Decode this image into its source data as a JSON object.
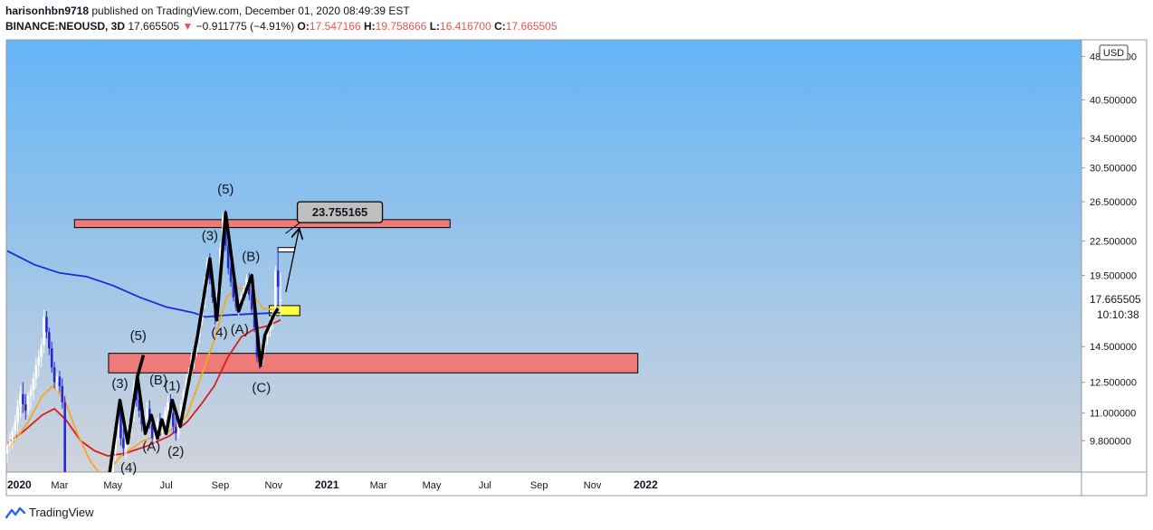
{
  "header": {
    "user": "harisonhbn9718",
    "published": "published on TradingView.com, December 01, 2020 08:49:39 EST",
    "symbol": "BINANCE:NEOUSD, 3D",
    "last": "17.665505",
    "change_arrow": "▼",
    "change": "−0.911775 (−4.91%)",
    "o_label": "O:",
    "o": "17.547166",
    "h_label": "H:",
    "h": "19.758666",
    "l_label": "L:",
    "l": "16.416700",
    "c_label": "C:",
    "c": "17.665505"
  },
  "price_axis": {
    "currency": "USD",
    "current_price": "17.665505",
    "countdown": "10:10:38"
  },
  "footer": {
    "brand": "TradingView"
  },
  "colors": {
    "bg_top": "#64b5f6",
    "bg_bottom": "#d1d4dc",
    "zone": "#ef7b79",
    "highlight": "#ffff44",
    "ma_blue": "#1e2bd6",
    "ma_red": "#d91e1e",
    "ma_orange": "#f5a623",
    "wave": "#000000",
    "bull_candle": "#ffffff",
    "bear_candle": "#2828d8"
  },
  "chart_data": {
    "type": "candlestick",
    "title": "BINANCE:NEOUSD, 3D",
    "ylabel": "USD",
    "y_scale": "log",
    "ylim": [
      8.6,
      52
    ],
    "y_ticks": [
      "48.500000",
      "40.500000",
      "34.500000",
      "30.500000",
      "26.500000",
      "22.500000",
      "19.500000",
      "14.500000",
      "12.500000",
      "11.000000",
      "9.800000"
    ],
    "x_ticks": [
      "2020",
      "Mar",
      "May",
      "Jul",
      "Sep",
      "Nov",
      "2021",
      "Mar",
      "May",
      "Jul",
      "Sep",
      "Nov",
      "2022"
    ],
    "candles": [
      {
        "d": "2020-01-01",
        "o": 9.3,
        "h": 9.8,
        "l": 8.9,
        "c": 9.6
      },
      {
        "d": "2020-01-04",
        "o": 9.6,
        "h": 10.1,
        "l": 9.4,
        "c": 9.8
      },
      {
        "d": "2020-01-07",
        "o": 9.8,
        "h": 10.4,
        "l": 9.5,
        "c": 10.2
      },
      {
        "d": "2020-01-10",
        "o": 10.2,
        "h": 10.9,
        "l": 9.8,
        "c": 10.6
      },
      {
        "d": "2020-01-13",
        "o": 10.6,
        "h": 11.6,
        "l": 10.2,
        "c": 11.3
      },
      {
        "d": "2020-01-16",
        "o": 11.3,
        "h": 12.3,
        "l": 10.8,
        "c": 11.9
      },
      {
        "d": "2020-01-19",
        "o": 11.9,
        "h": 12.5,
        "l": 11.0,
        "c": 11.4
      },
      {
        "d": "2020-01-22",
        "o": 11.4,
        "h": 11.9,
        "l": 10.7,
        "c": 11.1
      },
      {
        "d": "2020-01-25",
        "o": 11.1,
        "h": 12.0,
        "l": 10.9,
        "c": 11.8
      },
      {
        "d": "2020-01-28",
        "o": 11.8,
        "h": 12.4,
        "l": 11.2,
        "c": 12.1
      },
      {
        "d": "2020-01-31",
        "o": 12.1,
        "h": 13.0,
        "l": 11.6,
        "c": 12.7
      },
      {
        "d": "2020-02-03",
        "o": 12.7,
        "h": 13.8,
        "l": 12.2,
        "c": 13.4
      },
      {
        "d": "2020-02-06",
        "o": 13.4,
        "h": 14.3,
        "l": 12.8,
        "c": 13.9
      },
      {
        "d": "2020-02-09",
        "o": 13.9,
        "h": 15.0,
        "l": 13.3,
        "c": 14.6
      },
      {
        "d": "2020-02-12",
        "o": 14.6,
        "h": 16.9,
        "l": 14.1,
        "c": 16.4
      },
      {
        "d": "2020-02-15",
        "o": 16.4,
        "h": 16.8,
        "l": 15.0,
        "c": 15.4
      },
      {
        "d": "2020-02-18",
        "o": 15.4,
        "h": 15.7,
        "l": 14.0,
        "c": 14.4
      },
      {
        "d": "2020-02-21",
        "o": 14.4,
        "h": 14.8,
        "l": 13.0,
        "c": 13.3
      },
      {
        "d": "2020-02-24",
        "o": 13.3,
        "h": 13.6,
        "l": 12.2,
        "c": 12.5
      },
      {
        "d": "2020-02-27",
        "o": 12.5,
        "h": 13.0,
        "l": 12.0,
        "c": 12.8
      },
      {
        "d": "2020-03-01",
        "o": 12.8,
        "h": 13.1,
        "l": 12.0,
        "c": 12.3
      },
      {
        "d": "2020-03-04",
        "o": 12.3,
        "h": 12.7,
        "l": 11.2,
        "c": 11.5
      },
      {
        "d": "2020-03-07",
        "o": 11.5,
        "h": 11.8,
        "l": 7.8,
        "c": 8.4
      },
      {
        "d": "2020-05-01",
        "o": 8.6,
        "h": 9.6,
        "l": 8.3,
        "c": 9.4
      },
      {
        "d": "2020-05-04",
        "o": 9.4,
        "h": 10.5,
        "l": 9.0,
        "c": 10.2
      },
      {
        "d": "2020-05-07",
        "o": 10.2,
        "h": 11.4,
        "l": 9.8,
        "c": 11.1
      },
      {
        "d": "2020-05-10",
        "o": 11.1,
        "h": 11.5,
        "l": 9.6,
        "c": 9.9
      },
      {
        "d": "2020-05-13",
        "o": 9.9,
        "h": 10.3,
        "l": 9.2,
        "c": 9.5
      },
      {
        "d": "2020-05-16",
        "o": 9.5,
        "h": 10.1,
        "l": 9.1,
        "c": 9.9
      },
      {
        "d": "2020-05-19",
        "o": 9.9,
        "h": 10.6,
        "l": 9.6,
        "c": 10.4
      },
      {
        "d": "2020-05-22",
        "o": 10.4,
        "h": 11.2,
        "l": 10.0,
        "c": 10.9
      },
      {
        "d": "2020-05-25",
        "o": 10.9,
        "h": 12.6,
        "l": 10.6,
        "c": 12.3
      },
      {
        "d": "2020-05-28",
        "o": 12.3,
        "h": 12.7,
        "l": 11.3,
        "c": 11.6
      },
      {
        "d": "2020-05-31",
        "o": 11.6,
        "h": 11.9,
        "l": 10.8,
        "c": 11.1
      },
      {
        "d": "2020-06-03",
        "o": 11.1,
        "h": 11.4,
        "l": 10.2,
        "c": 10.5
      },
      {
        "d": "2020-06-06",
        "o": 10.5,
        "h": 11.0,
        "l": 10.1,
        "c": 10.8
      },
      {
        "d": "2020-06-09",
        "o": 10.8,
        "h": 11.5,
        "l": 10.4,
        "c": 11.2
      },
      {
        "d": "2020-06-12",
        "o": 11.2,
        "h": 11.6,
        "l": 10.3,
        "c": 10.5
      },
      {
        "d": "2020-06-15",
        "o": 10.5,
        "h": 10.8,
        "l": 9.7,
        "c": 9.9
      },
      {
        "d": "2020-06-18",
        "o": 9.9,
        "h": 10.4,
        "l": 9.6,
        "c": 10.2
      },
      {
        "d": "2020-06-21",
        "o": 10.2,
        "h": 10.8,
        "l": 9.9,
        "c": 10.6
      },
      {
        "d": "2020-06-24",
        "o": 10.6,
        "h": 11.0,
        "l": 10.0,
        "c": 10.3
      },
      {
        "d": "2020-06-27",
        "o": 10.3,
        "h": 10.9,
        "l": 10.0,
        "c": 10.7
      },
      {
        "d": "2020-06-30",
        "o": 10.7,
        "h": 11.3,
        "l": 10.4,
        "c": 11.1
      },
      {
        "d": "2020-07-03",
        "o": 11.1,
        "h": 11.8,
        "l": 10.7,
        "c": 11.5
      },
      {
        "d": "2020-07-06",
        "o": 11.5,
        "h": 11.9,
        "l": 10.8,
        "c": 11.0
      },
      {
        "d": "2020-07-09",
        "o": 11.0,
        "h": 11.3,
        "l": 10.1,
        "c": 10.4
      },
      {
        "d": "2020-07-12",
        "o": 10.4,
        "h": 10.9,
        "l": 9.8,
        "c": 10.1
      },
      {
        "d": "2020-07-15",
        "o": 10.1,
        "h": 10.9,
        "l": 9.9,
        "c": 10.7
      },
      {
        "d": "2020-07-18",
        "o": 10.7,
        "h": 11.6,
        "l": 10.4,
        "c": 11.4
      },
      {
        "d": "2020-07-21",
        "o": 11.4,
        "h": 12.2,
        "l": 11.0,
        "c": 12.0
      },
      {
        "d": "2020-07-24",
        "o": 12.0,
        "h": 12.9,
        "l": 11.6,
        "c": 12.6
      },
      {
        "d": "2020-07-27",
        "o": 12.6,
        "h": 13.3,
        "l": 12.1,
        "c": 13.0
      },
      {
        "d": "2020-07-30",
        "o": 13.0,
        "h": 14.2,
        "l": 12.7,
        "c": 13.9
      },
      {
        "d": "2020-08-02",
        "o": 13.9,
        "h": 14.6,
        "l": 13.2,
        "c": 14.3
      },
      {
        "d": "2020-08-05",
        "o": 14.3,
        "h": 15.4,
        "l": 13.9,
        "c": 15.1
      },
      {
        "d": "2020-08-08",
        "o": 15.1,
        "h": 16.6,
        "l": 14.7,
        "c": 16.2
      },
      {
        "d": "2020-08-11",
        "o": 16.2,
        "h": 17.9,
        "l": 15.8,
        "c": 17.5
      },
      {
        "d": "2020-08-14",
        "o": 17.5,
        "h": 19.4,
        "l": 17.0,
        "c": 19.0
      },
      {
        "d": "2020-08-17",
        "o": 19.0,
        "h": 21.0,
        "l": 18.4,
        "c": 20.6
      },
      {
        "d": "2020-08-20",
        "o": 20.6,
        "h": 21.4,
        "l": 18.8,
        "c": 19.2
      },
      {
        "d": "2020-08-23",
        "o": 19.2,
        "h": 19.8,
        "l": 17.4,
        "c": 17.8
      },
      {
        "d": "2020-08-26",
        "o": 17.8,
        "h": 18.2,
        "l": 15.9,
        "c": 16.3
      },
      {
        "d": "2020-08-29",
        "o": 16.3,
        "h": 18.6,
        "l": 16.0,
        "c": 18.3
      },
      {
        "d": "2020-09-01",
        "o": 18.3,
        "h": 22.4,
        "l": 18.0,
        "c": 21.9
      },
      {
        "d": "2020-09-04",
        "o": 21.9,
        "h": 25.4,
        "l": 21.4,
        "c": 24.9
      },
      {
        "d": "2020-09-07",
        "o": 24.9,
        "h": 25.6,
        "l": 21.6,
        "c": 22.1
      },
      {
        "d": "2020-09-10",
        "o": 22.1,
        "h": 22.6,
        "l": 19.6,
        "c": 20.1
      },
      {
        "d": "2020-09-13",
        "o": 20.1,
        "h": 21.0,
        "l": 18.6,
        "c": 19.0
      },
      {
        "d": "2020-09-16",
        "o": 19.0,
        "h": 19.5,
        "l": 17.5,
        "c": 17.8
      },
      {
        "d": "2020-09-19",
        "o": 17.8,
        "h": 18.3,
        "l": 16.8,
        "c": 17.1
      },
      {
        "d": "2020-09-22",
        "o": 17.1,
        "h": 17.8,
        "l": 16.5,
        "c": 17.5
      },
      {
        "d": "2020-09-25",
        "o": 17.5,
        "h": 18.2,
        "l": 17.0,
        "c": 17.9
      },
      {
        "d": "2020-09-28",
        "o": 17.9,
        "h": 18.7,
        "l": 17.4,
        "c": 18.4
      },
      {
        "d": "2020-10-01",
        "o": 18.4,
        "h": 19.6,
        "l": 17.9,
        "c": 19.2
      },
      {
        "d": "2020-10-04",
        "o": 19.2,
        "h": 19.7,
        "l": 17.6,
        "c": 18.0
      },
      {
        "d": "2020-10-07",
        "o": 18.0,
        "h": 18.4,
        "l": 16.6,
        "c": 16.9
      },
      {
        "d": "2020-10-10",
        "o": 16.9,
        "h": 17.3,
        "l": 15.4,
        "c": 15.7
      },
      {
        "d": "2020-10-13",
        "o": 15.7,
        "h": 16.0,
        "l": 13.6,
        "c": 13.9
      },
      {
        "d": "2020-10-16",
        "o": 13.9,
        "h": 14.4,
        "l": 13.2,
        "c": 13.6
      },
      {
        "d": "2020-10-19",
        "o": 13.6,
        "h": 14.8,
        "l": 13.4,
        "c": 14.5
      },
      {
        "d": "2020-10-22",
        "o": 14.5,
        "h": 15.4,
        "l": 14.1,
        "c": 15.1
      },
      {
        "d": "2020-10-25",
        "o": 15.1,
        "h": 15.8,
        "l": 14.6,
        "c": 15.5
      },
      {
        "d": "2020-10-28",
        "o": 15.5,
        "h": 16.4,
        "l": 15.1,
        "c": 16.1
      },
      {
        "d": "2020-10-31",
        "o": 16.1,
        "h": 16.9,
        "l": 15.6,
        "c": 16.6
      },
      {
        "d": "2020-11-03",
        "o": 16.6,
        "h": 20.3,
        "l": 16.4,
        "c": 19.9
      },
      {
        "d": "2020-11-06",
        "o": 19.9,
        "h": 21.6,
        "l": 17.2,
        "c": 18.6
      },
      {
        "d": "2020-11-09",
        "o": 17.547166,
        "h": 19.758666,
        "l": 16.4167,
        "c": 17.665505
      }
    ],
    "moving_averages": [
      {
        "color": "blue",
        "points": [
          [
            "2020-01-01",
            21.6
          ],
          [
            "2020-02-01",
            20.4
          ],
          [
            "2020-03-01",
            19.7
          ],
          [
            "2020-04-01",
            19.4
          ],
          [
            "2020-05-01",
            18.7
          ],
          [
            "2020-06-01",
            17.8
          ],
          [
            "2020-07-01",
            17.1
          ],
          [
            "2020-08-01",
            16.7
          ],
          [
            "2020-08-15",
            16.4
          ],
          [
            "2020-09-01",
            16.5
          ],
          [
            "2020-10-01",
            16.6
          ],
          [
            "2020-11-09",
            16.7
          ]
        ]
      },
      {
        "color": "red",
        "points": [
          [
            "2020-01-01",
            9.7
          ],
          [
            "2020-01-20",
            10.2
          ],
          [
            "2020-02-10",
            10.9
          ],
          [
            "2020-02-24",
            11.2
          ],
          [
            "2020-03-08",
            10.7
          ],
          [
            "2020-03-25",
            9.8
          ],
          [
            "2020-04-10",
            9.4
          ],
          [
            "2020-04-25",
            9.2
          ],
          [
            "2020-05-15",
            9.3
          ],
          [
            "2020-06-10",
            9.6
          ],
          [
            "2020-07-05",
            10.0
          ],
          [
            "2020-07-25",
            10.6
          ],
          [
            "2020-08-10",
            11.4
          ],
          [
            "2020-08-25",
            12.3
          ],
          [
            "2020-09-10",
            13.9
          ],
          [
            "2020-09-25",
            15.1
          ],
          [
            "2020-10-10",
            15.6
          ],
          [
            "2020-10-25",
            15.8
          ],
          [
            "2020-11-09",
            16.2
          ]
        ]
      },
      {
        "color": "orange",
        "points": [
          [
            "2020-01-01",
            9.4
          ],
          [
            "2020-01-25",
            10.6
          ],
          [
            "2020-02-10",
            11.8
          ],
          [
            "2020-02-22",
            12.3
          ],
          [
            "2020-03-07",
            11.6
          ],
          [
            "2020-03-20",
            10.2
          ],
          [
            "2020-04-05",
            9.0
          ],
          [
            "2020-04-20",
            8.4
          ],
          [
            "2020-05-10",
            9.2
          ],
          [
            "2020-06-05",
            9.8
          ],
          [
            "2020-07-05",
            10.2
          ],
          [
            "2020-07-25",
            10.9
          ],
          [
            "2020-08-10",
            12.8
          ],
          [
            "2020-08-25",
            14.9
          ],
          [
            "2020-09-08",
            17.8
          ],
          [
            "2020-09-20",
            18.5
          ],
          [
            "2020-10-05",
            18.3
          ],
          [
            "2020-10-20",
            17.0
          ],
          [
            "2020-11-01",
            16.9
          ],
          [
            "2020-11-09",
            17.2
          ]
        ]
      }
    ],
    "zones": [
      {
        "from": "2020-03-18",
        "to": "2021-05-22",
        "top": 24.6,
        "bottom": 23.8,
        "color": "zone"
      },
      {
        "from": "2020-04-26",
        "to": "2021-12-23",
        "top": 14.1,
        "bottom": 13.0,
        "color": "zone"
      },
      {
        "from": "2020-10-27",
        "to": "2020-12-01",
        "top": 17.2,
        "bottom": 16.5,
        "color": "highlight"
      },
      {
        "from": "2020-11-06",
        "to": "2020-11-25",
        "top": 21.9,
        "bottom": 21.5,
        "color": "white"
      }
    ],
    "wave_path": [
      [
        "2020-04-26",
        8.3
      ],
      [
        "2020-05-09",
        11.6
      ],
      [
        "2020-05-18",
        9.7
      ],
      [
        "2020-05-29",
        12.8
      ],
      [
        "2020-06-07",
        10.1
      ],
      [
        "2020-06-14",
        10.9
      ],
      [
        "2020-06-21",
        9.9
      ],
      [
        "2020-06-26",
        10.7
      ],
      [
        "2020-07-01",
        10.1
      ],
      [
        "2020-07-08",
        11.6
      ],
      [
        "2020-07-17",
        10.4
      ],
      [
        "2020-08-06",
        15.2
      ],
      [
        "2020-08-20",
        20.9
      ],
      [
        "2020-08-28",
        16.2
      ],
      [
        "2020-09-07",
        25.3
      ],
      [
        "2020-09-22",
        16.8
      ],
      [
        "2020-10-07",
        19.5
      ],
      [
        "2020-10-17",
        13.4
      ],
      [
        "2020-10-22",
        15.2
      ],
      [
        "2020-11-01",
        16.5
      ],
      [
        "2020-11-06",
        17.0
      ]
    ],
    "wave_path_2": [
      [
        "2020-05-29",
        12.8
      ],
      [
        "2020-06-05",
        14.0
      ]
    ],
    "arrow": {
      "from": [
        "2020-11-15",
        18.2
      ],
      "to": [
        "2020-11-30",
        23.6
      ]
    },
    "callout": {
      "text": "23.755165",
      "anchor": [
        "2020-11-23",
        23.755165
      ]
    },
    "annotations": [
      {
        "text": "(5)",
        "x": "2020-09-07",
        "y": 27.4
      },
      {
        "text": "(3)",
        "x": "2020-08-20",
        "y": 22.6
      },
      {
        "text": "(B)",
        "x": "2020-10-06",
        "y": 20.7
      },
      {
        "text": "(4)",
        "x": "2020-08-31",
        "y": 15.1
      },
      {
        "text": "(A)",
        "x": "2020-09-23",
        "y": 15.3
      },
      {
        "text": "(C)",
        "x": "2020-10-18",
        "y": 12.0
      },
      {
        "text": "(5)",
        "x": "2020-05-30",
        "y": 14.9
      },
      {
        "text": "(3)",
        "x": "2020-05-09",
        "y": 12.2
      },
      {
        "text": "(B)",
        "x": "2020-06-22",
        "y": 12.4
      },
      {
        "text": "(1)",
        "x": "2020-07-08",
        "y": 12.1
      },
      {
        "text": "(A)",
        "x": "2020-06-14",
        "y": 9.4
      },
      {
        "text": "(2)",
        "x": "2020-07-12",
        "y": 9.2
      },
      {
        "text": "(4)",
        "x": "2020-05-19",
        "y": 8.6
      }
    ]
  }
}
